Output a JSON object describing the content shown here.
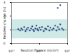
{
  "chart_data": {
    "type": "scatter",
    "x_label": "Neutron fluence (n/cm²)",
    "y_label": "Relative change (%)",
    "log": "x",
    "color": "#1f3f7a",
    "marker": "circle",
    "x": [
      3e+17,
      4e+17,
      5e+17,
      6e+17,
      8e+17,
      1e+18,
      1.2e+18,
      1.5e+18,
      2e+18,
      2.5e+18,
      3e+18,
      3.5e+18,
      4e+18,
      5e+18,
      6e+18,
      7e+18,
      8e+18,
      1e+19,
      1.2e+19,
      1.5e+19,
      2e+19,
      2.5e+19,
      3e+19,
      4e+19,
      5e+19,
      6e+19,
      8e+19,
      1e+20,
      1.3e+20,
      1.6e+20,
      2e+20,
      2.5e+20,
      3e+20,
      4e+20,
      5e+20,
      2e+20,
      3e+20
    ],
    "values": [
      1.05,
      0.95,
      1.1,
      1.0,
      1.2,
      0.9,
      1.05,
      1.15,
      0.95,
      1.1,
      1.25,
      1.0,
      0.9,
      1.1,
      1.3,
      1.05,
      0.95,
      1.15,
      1.0,
      1.2,
      0.9,
      1.1,
      1.05,
      1.25,
      0.95,
      1.15,
      1.0,
      1.1,
      1.3,
      0.95,
      1.2,
      1.05,
      1.4,
      1.1,
      1.0,
      2.6,
      2.8
    ],
    "band": {
      "x": [
        1e+17,
        1e+21
      ],
      "lower": [
        0.35,
        0.35
      ],
      "upper": [
        1.75,
        1.75
      ],
      "color": "#cfe9e7"
    },
    "reference_line": {
      "value": 1,
      "color": "#4a7a9a"
    },
    "xlim": [
      1e+17,
      1e+21
    ],
    "xticks": [
      {
        "value": 1e+17,
        "label": "10¹⁷"
      },
      {
        "value": 1e+19,
        "label": "10¹⁹"
      },
      {
        "value": 1e+21,
        "label": "10²¹"
      }
    ],
    "ylim": [
      0,
      3
    ],
    "yticks": [
      0,
      1,
      2,
      3
    ],
    "grid": false
  }
}
